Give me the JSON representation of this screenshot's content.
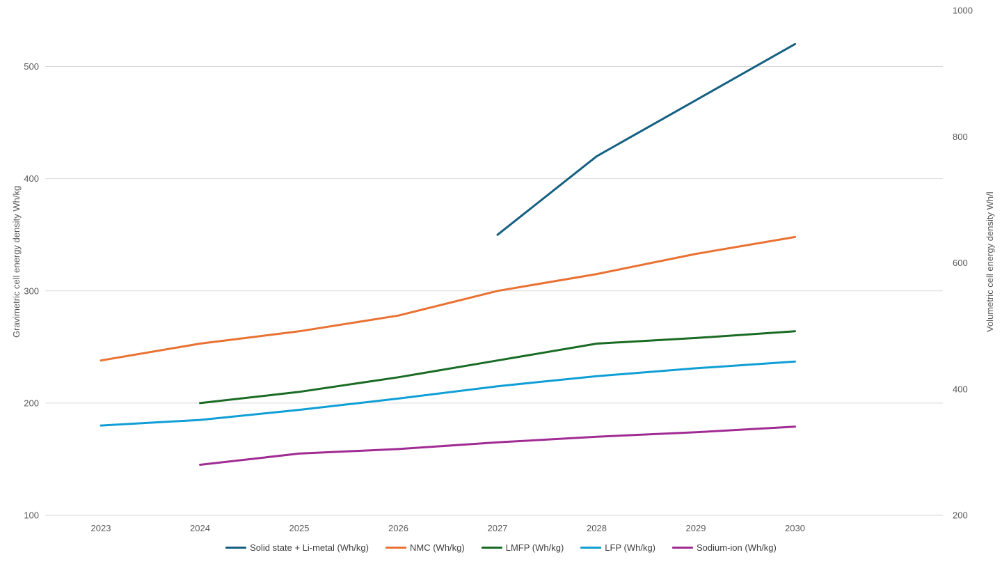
{
  "chart_data": {
    "type": "line",
    "title": "",
    "x_categories": [
      "2023",
      "2024",
      "2025",
      "2026",
      "2027",
      "2028",
      "2029",
      "2030"
    ],
    "left_axis": {
      "label": "Gravimetric cell energy density Wh/kg",
      "ticks": [
        100,
        200,
        300,
        400,
        500
      ],
      "min": 100,
      "max": 550
    },
    "right_axis": {
      "label": "Volumetric cell energy density Wh/l",
      "ticks": [
        200,
        400,
        600,
        800,
        1000
      ],
      "min": 200,
      "max": 1000
    },
    "grid": true,
    "grid_color": "#d9d9d9",
    "tick_color": "#595959",
    "legend_position": "bottom",
    "series": [
      {
        "name": "Solid state + Li-metal (Wh/kg)",
        "color": "#156082",
        "axis": "left",
        "values": [
          null,
          null,
          null,
          null,
          350,
          420,
          470,
          520
        ]
      },
      {
        "name": "NMC (Wh/kg)",
        "color": "#E97132",
        "axis": "left",
        "values": [
          238,
          253,
          264,
          278,
          300,
          315,
          333,
          348
        ]
      },
      {
        "name": "LMFP (Wh/kg)",
        "color": "#196B24",
        "axis": "left",
        "values": [
          null,
          200,
          210,
          223,
          238,
          253,
          258,
          264
        ]
      },
      {
        "name": "LFP (Wh/kg)",
        "color": "#0F9ED5",
        "axis": "left",
        "values": [
          180,
          185,
          194,
          204,
          215,
          224,
          231,
          237
        ]
      },
      {
        "name": "Sodium-ion (Wh/kg)",
        "color": "#A02B93",
        "axis": "left",
        "values": [
          null,
          145,
          155,
          159,
          165,
          170,
          174,
          179
        ]
      }
    ]
  }
}
